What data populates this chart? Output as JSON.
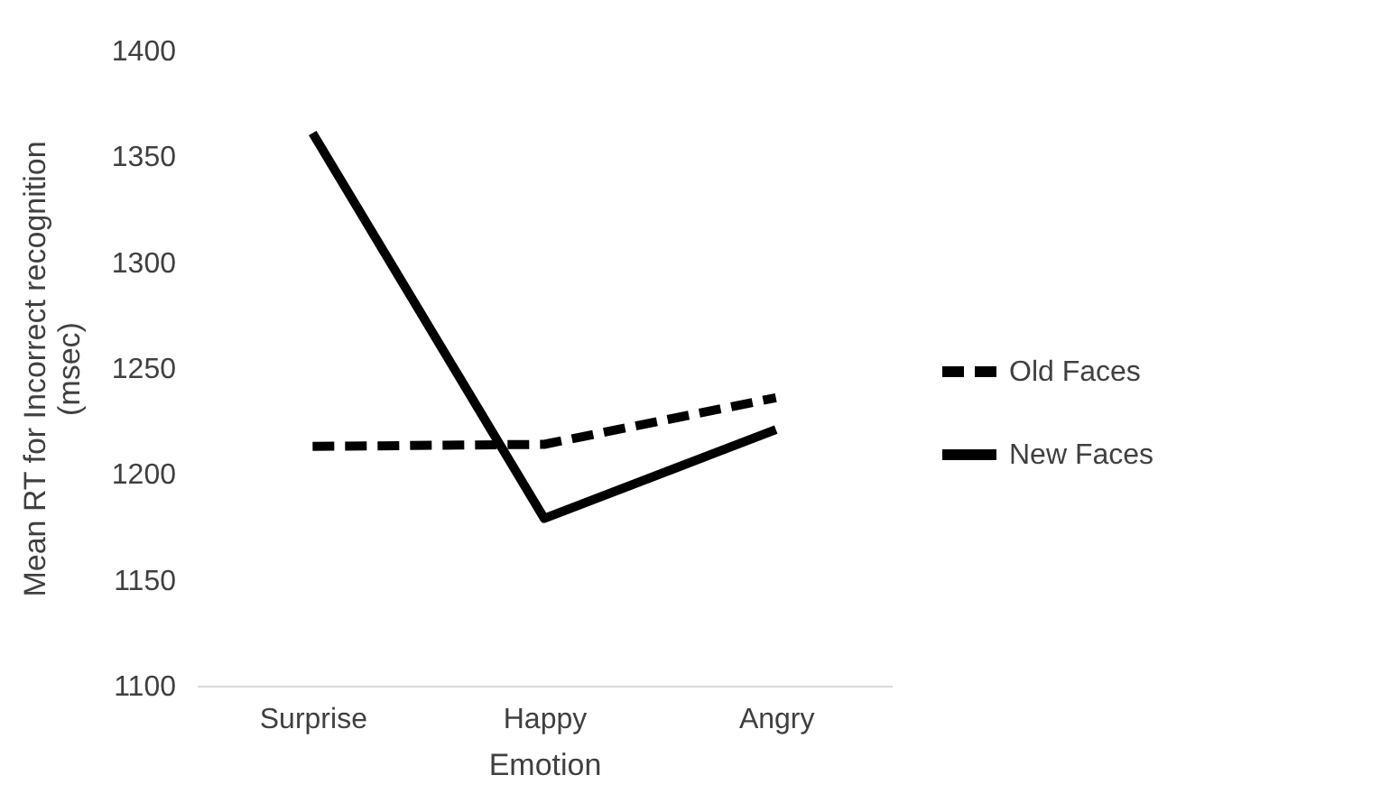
{
  "chart_data": {
    "type": "line",
    "xlabel": "Emotion",
    "ylabel": "Mean RT for Incorrect recognition (msec)",
    "categories": [
      "Surprise",
      "Happy",
      "Angry"
    ],
    "series": [
      {
        "name": "Old Faces",
        "color": "#000000",
        "line_style": "dashed",
        "values": [
          1213,
          1214,
          1236
        ]
      },
      {
        "name": "New Faces",
        "color": "#000000",
        "line_style": "solid",
        "values": [
          1361,
          1179,
          1221
        ]
      }
    ],
    "ylim": [
      1100,
      1400
    ],
    "yticks": [
      1100,
      1150,
      1200,
      1250,
      1300,
      1350,
      1400
    ],
    "grid": false,
    "legend": "right",
    "marker": "none"
  }
}
